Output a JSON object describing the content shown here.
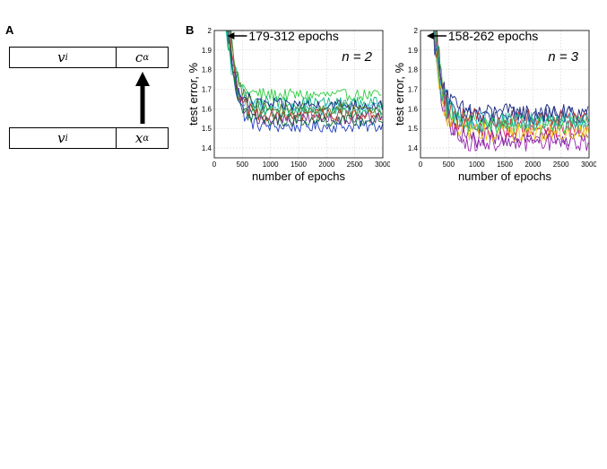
{
  "panel_a": {
    "label": "A",
    "top_row": {
      "left_var": "v",
      "left_sub": "i",
      "right_var": "c",
      "right_sub": "α"
    },
    "bottom_row": {
      "left_var": "v",
      "left_sub": "i",
      "right_var": "x",
      "right_sub": "α"
    }
  },
  "panel_b": {
    "label": "B"
  },
  "chart_data": [
    {
      "type": "line",
      "annotation": "179-312 epochs",
      "n_label": "n = 2",
      "xlabel": "number of epochs",
      "ylabel": "test error, %",
      "xlim": [
        0,
        3000
      ],
      "ylim": [
        1.35,
        2.0
      ],
      "xticks": [
        "0",
        "500",
        "1000",
        "1500",
        "2000",
        "2500",
        "3000"
      ],
      "yticks": [
        "1.4",
        "1.5",
        "1.6",
        "1.7",
        "1.8",
        "1.9",
        "2"
      ],
      "grid": true,
      "series_colors": [
        "#1f3fbf",
        "#2ecc40",
        "#12b886",
        "#3bc9db",
        "#1a237e",
        "#00aa66",
        "#7b2d8e",
        "#c0392b",
        "#0d6e3f",
        "#5a7f2a"
      ],
      "series_final_values": [
        1.51,
        1.67,
        1.63,
        1.6,
        1.62,
        1.58,
        1.55,
        1.57,
        1.54,
        1.6
      ]
    },
    {
      "type": "line",
      "annotation": "158-262 epochs",
      "n_label": "n = 3",
      "xlabel": "number of epochs",
      "ylabel": "test error, %",
      "xlim": [
        0,
        3000
      ],
      "ylim": [
        1.35,
        2.0
      ],
      "xticks": [
        "0",
        "500",
        "1000",
        "1500",
        "2000",
        "2500",
        "3000"
      ],
      "yticks": [
        "1.4",
        "1.5",
        "1.6",
        "1.7",
        "1.8",
        "1.9",
        "2"
      ],
      "grid": true,
      "series_colors": [
        "#1a237e",
        "#7b1fa2",
        "#9c27b0",
        "#d81b60",
        "#2ecc40",
        "#3bc9db",
        "#f1c40f",
        "#c0392b",
        "#2c3e90",
        "#12b886"
      ],
      "series_final_values": [
        1.58,
        1.45,
        1.43,
        1.5,
        1.52,
        1.54,
        1.48,
        1.55,
        1.57,
        1.53
      ]
    }
  ]
}
